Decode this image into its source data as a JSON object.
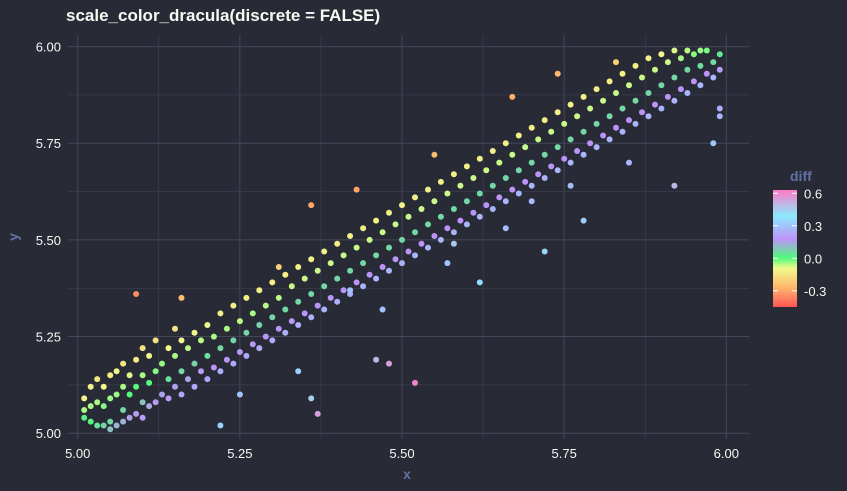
{
  "chart_data": {
    "type": "scatter",
    "title": "scale_color_dracula(discrete = FALSE)",
    "xlabel": "x",
    "ylabel": "y",
    "xlim": [
      4.985,
      6.035
    ],
    "ylim": [
      4.985,
      6.03
    ],
    "x_ticks": [
      "5.00",
      "5.25",
      "5.50",
      "5.75",
      "6.00"
    ],
    "x_tick_values": [
      5.0,
      5.25,
      5.5,
      5.75,
      6.0
    ],
    "y_ticks": [
      "5.00",
      "5.25",
      "5.50",
      "5.75",
      "6.00"
    ],
    "y_tick_values": [
      5.0,
      5.25,
      5.5,
      5.75,
      6.0
    ],
    "grid": true,
    "legend": {
      "title": "diff",
      "placement": "right",
      "labels": [
        "0.6",
        "0.3",
        "0.0",
        "-0.3"
      ],
      "label_values": [
        0.6,
        0.3,
        0.0,
        -0.3
      ],
      "range": [
        -0.45,
        0.63
      ]
    },
    "colors": {
      "background": "#282a36",
      "grid": "#44475a",
      "axis_title": "#6272a4",
      "gradient": [
        "#ff5555",
        "#ffb86c",
        "#f1fa8c",
        "#50fa7b",
        "#bd93f9",
        "#8be9fd",
        "#ff79c6"
      ]
    },
    "points": [
      [
        5.01,
        5.04,
        0.02
      ],
      [
        5.01,
        5.06,
        -0.05
      ],
      [
        5.01,
        5.09,
        -0.1
      ],
      [
        5.02,
        5.03,
        0.01
      ],
      [
        5.02,
        5.07,
        -0.05
      ],
      [
        5.02,
        5.12,
        -0.12
      ],
      [
        5.03,
        5.02,
        0.04
      ],
      [
        5.03,
        5.08,
        -0.05
      ],
      [
        5.03,
        5.14,
        -0.14
      ],
      [
        5.04,
        5.02,
        0.07
      ],
      [
        5.04,
        5.07,
        -0.03
      ],
      [
        5.04,
        5.12,
        -0.1
      ],
      [
        5.05,
        5.01,
        0.1
      ],
      [
        5.05,
        5.03,
        0.06
      ],
      [
        5.05,
        5.09,
        -0.04
      ],
      [
        5.05,
        5.15,
        -0.13
      ],
      [
        5.06,
        5.02,
        0.12
      ],
      [
        5.06,
        5.1,
        -0.04
      ],
      [
        5.06,
        5.16,
        -0.12
      ],
      [
        5.07,
        5.03,
        0.13
      ],
      [
        5.07,
        5.06,
        0.06
      ],
      [
        5.07,
        5.12,
        -0.05
      ],
      [
        5.07,
        5.18,
        -0.14
      ],
      [
        5.08,
        5.04,
        0.15
      ],
      [
        5.08,
        5.1,
        0.0
      ],
      [
        5.08,
        5.15,
        -0.08
      ],
      [
        5.09,
        5.05,
        0.16
      ],
      [
        5.09,
        5.12,
        0.0
      ],
      [
        5.09,
        5.19,
        -0.13
      ],
      [
        5.1,
        5.04,
        0.2
      ],
      [
        5.1,
        5.08,
        0.1
      ],
      [
        5.1,
        5.15,
        -0.05
      ],
      [
        5.1,
        5.22,
        -0.15
      ],
      [
        5.11,
        5.07,
        0.14
      ],
      [
        5.11,
        5.13,
        0.0
      ],
      [
        5.11,
        5.2,
        -0.1
      ],
      [
        5.12,
        5.08,
        0.16
      ],
      [
        5.12,
        5.16,
        -0.03
      ],
      [
        5.12,
        5.24,
        -0.15
      ],
      [
        5.13,
        5.1,
        0.15
      ],
      [
        5.13,
        5.18,
        -0.04
      ],
      [
        5.14,
        5.09,
        0.2
      ],
      [
        5.14,
        5.14,
        0.05
      ],
      [
        5.14,
        5.22,
        -0.1
      ],
      [
        5.15,
        5.12,
        0.16
      ],
      [
        5.15,
        5.2,
        -0.05
      ],
      [
        5.15,
        5.27,
        -0.15
      ],
      [
        5.16,
        5.1,
        0.22
      ],
      [
        5.16,
        5.16,
        0.06
      ],
      [
        5.16,
        5.24,
        -0.1
      ],
      [
        5.17,
        5.14,
        0.15
      ],
      [
        5.17,
        5.22,
        -0.06
      ],
      [
        5.18,
        5.12,
        0.23
      ],
      [
        5.18,
        5.18,
        0.07
      ],
      [
        5.18,
        5.26,
        -0.1
      ],
      [
        5.19,
        5.16,
        0.16
      ],
      [
        5.19,
        5.24,
        -0.06
      ],
      [
        5.2,
        5.14,
        0.22
      ],
      [
        5.2,
        5.2,
        0.05
      ],
      [
        5.2,
        5.28,
        -0.1
      ],
      [
        5.21,
        5.17,
        0.18
      ],
      [
        5.21,
        5.25,
        -0.05
      ],
      [
        5.22,
        5.16,
        0.25
      ],
      [
        5.22,
        5.22,
        0.06
      ],
      [
        5.22,
        5.31,
        -0.12
      ],
      [
        5.23,
        5.19,
        0.17
      ],
      [
        5.23,
        5.27,
        -0.05
      ],
      [
        5.24,
        5.18,
        0.23
      ],
      [
        5.24,
        5.24,
        0.06
      ],
      [
        5.24,
        5.33,
        -0.12
      ],
      [
        5.25,
        5.21,
        0.17
      ],
      [
        5.25,
        5.29,
        -0.06
      ],
      [
        5.26,
        5.2,
        0.24
      ],
      [
        5.26,
        5.26,
        0.06
      ],
      [
        5.26,
        5.35,
        -0.13
      ],
      [
        5.27,
        5.23,
        0.17
      ],
      [
        5.27,
        5.31,
        -0.05
      ],
      [
        5.28,
        5.22,
        0.24
      ],
      [
        5.28,
        5.28,
        0.07
      ],
      [
        5.28,
        5.37,
        -0.12
      ],
      [
        5.29,
        5.25,
        0.17
      ],
      [
        5.29,
        5.33,
        -0.06
      ],
      [
        5.3,
        5.24,
        0.24
      ],
      [
        5.3,
        5.3,
        0.07
      ],
      [
        5.3,
        5.39,
        -0.12
      ],
      [
        5.31,
        5.27,
        0.17
      ],
      [
        5.31,
        5.35,
        -0.06
      ],
      [
        5.32,
        5.26,
        0.25
      ],
      [
        5.32,
        5.32,
        0.06
      ],
      [
        5.32,
        5.41,
        -0.12
      ],
      [
        5.33,
        5.29,
        0.17
      ],
      [
        5.33,
        5.38,
        -0.07
      ],
      [
        5.34,
        5.28,
        0.25
      ],
      [
        5.34,
        5.34,
        0.06
      ],
      [
        5.34,
        5.43,
        -0.12
      ],
      [
        5.35,
        5.31,
        0.18
      ],
      [
        5.35,
        5.4,
        -0.07
      ],
      [
        5.36,
        5.3,
        0.25
      ],
      [
        5.36,
        5.36,
        0.06
      ],
      [
        5.36,
        5.45,
        -0.12
      ],
      [
        5.37,
        5.33,
        0.17
      ],
      [
        5.37,
        5.42,
        -0.07
      ],
      [
        5.38,
        5.32,
        0.25
      ],
      [
        5.38,
        5.38,
        0.06
      ],
      [
        5.38,
        5.47,
        -0.12
      ],
      [
        5.39,
        5.35,
        0.17
      ],
      [
        5.39,
        5.44,
        -0.07
      ],
      [
        5.4,
        5.34,
        0.25
      ],
      [
        5.4,
        5.4,
        0.06
      ],
      [
        5.4,
        5.49,
        -0.13
      ],
      [
        5.41,
        5.37,
        0.18
      ],
      [
        5.41,
        5.46,
        -0.07
      ],
      [
        5.42,
        5.36,
        0.26
      ],
      [
        5.42,
        5.42,
        0.06
      ],
      [
        5.42,
        5.51,
        -0.12
      ],
      [
        5.43,
        5.39,
        0.18
      ],
      [
        5.43,
        5.48,
        -0.07
      ],
      [
        5.44,
        5.38,
        0.26
      ],
      [
        5.44,
        5.44,
        0.06
      ],
      [
        5.44,
        5.53,
        -0.12
      ],
      [
        5.45,
        5.41,
        0.18
      ],
      [
        5.45,
        5.5,
        -0.07
      ],
      [
        5.46,
        5.4,
        0.26
      ],
      [
        5.46,
        5.46,
        0.06
      ],
      [
        5.46,
        5.55,
        -0.12
      ],
      [
        5.47,
        5.43,
        0.18
      ],
      [
        5.47,
        5.52,
        -0.07
      ],
      [
        5.48,
        5.42,
        0.26
      ],
      [
        5.48,
        5.48,
        0.06
      ],
      [
        5.48,
        5.57,
        -0.12
      ],
      [
        5.49,
        5.45,
        0.18
      ],
      [
        5.49,
        5.54,
        -0.07
      ],
      [
        5.5,
        5.44,
        0.26
      ],
      [
        5.5,
        5.5,
        0.06
      ],
      [
        5.5,
        5.59,
        -0.12
      ],
      [
        5.51,
        5.47,
        0.18
      ],
      [
        5.51,
        5.56,
        -0.07
      ],
      [
        5.52,
        5.46,
        0.26
      ],
      [
        5.52,
        5.52,
        0.06
      ],
      [
        5.52,
        5.61,
        -0.12
      ],
      [
        5.53,
        5.49,
        0.18
      ],
      [
        5.53,
        5.58,
        -0.07
      ],
      [
        5.54,
        5.48,
        0.26
      ],
      [
        5.54,
        5.54,
        0.06
      ],
      [
        5.54,
        5.63,
        -0.12
      ],
      [
        5.55,
        5.51,
        0.18
      ],
      [
        5.55,
        5.6,
        -0.07
      ],
      [
        5.56,
        5.5,
        0.26
      ],
      [
        5.56,
        5.56,
        0.06
      ],
      [
        5.56,
        5.65,
        -0.12
      ],
      [
        5.57,
        5.53,
        0.18
      ],
      [
        5.57,
        5.62,
        -0.07
      ],
      [
        5.58,
        5.52,
        0.26
      ],
      [
        5.58,
        5.58,
        0.06
      ],
      [
        5.58,
        5.67,
        -0.12
      ],
      [
        5.59,
        5.55,
        0.18
      ],
      [
        5.59,
        5.64,
        -0.07
      ],
      [
        5.6,
        5.54,
        0.26
      ],
      [
        5.6,
        5.6,
        0.06
      ],
      [
        5.6,
        5.69,
        -0.12
      ],
      [
        5.61,
        5.57,
        0.18
      ],
      [
        5.61,
        5.66,
        -0.07
      ],
      [
        5.62,
        5.56,
        0.26
      ],
      [
        5.62,
        5.62,
        0.06
      ],
      [
        5.62,
        5.71,
        -0.12
      ],
      [
        5.63,
        5.59,
        0.18
      ],
      [
        5.63,
        5.68,
        -0.07
      ],
      [
        5.64,
        5.58,
        0.26
      ],
      [
        5.64,
        5.64,
        0.06
      ],
      [
        5.64,
        5.73,
        -0.12
      ],
      [
        5.65,
        5.61,
        0.18
      ],
      [
        5.65,
        5.7,
        -0.07
      ],
      [
        5.66,
        5.6,
        0.26
      ],
      [
        5.66,
        5.66,
        0.06
      ],
      [
        5.66,
        5.75,
        -0.12
      ],
      [
        5.67,
        5.63,
        0.18
      ],
      [
        5.67,
        5.72,
        -0.07
      ],
      [
        5.68,
        5.62,
        0.26
      ],
      [
        5.68,
        5.68,
        0.06
      ],
      [
        5.68,
        5.77,
        -0.12
      ],
      [
        5.69,
        5.65,
        0.18
      ],
      [
        5.69,
        5.74,
        -0.07
      ],
      [
        5.7,
        5.64,
        0.26
      ],
      [
        5.7,
        5.7,
        0.06
      ],
      [
        5.7,
        5.79,
        -0.12
      ],
      [
        5.71,
        5.67,
        0.18
      ],
      [
        5.71,
        5.76,
        -0.07
      ],
      [
        5.72,
        5.66,
        0.26
      ],
      [
        5.72,
        5.72,
        0.06
      ],
      [
        5.72,
        5.81,
        -0.12
      ],
      [
        5.73,
        5.69,
        0.18
      ],
      [
        5.73,
        5.78,
        -0.07
      ],
      [
        5.74,
        5.68,
        0.26
      ],
      [
        5.74,
        5.74,
        0.06
      ],
      [
        5.74,
        5.83,
        -0.12
      ],
      [
        5.75,
        5.71,
        0.18
      ],
      [
        5.75,
        5.8,
        -0.07
      ],
      [
        5.76,
        5.7,
        0.26
      ],
      [
        5.76,
        5.76,
        0.06
      ],
      [
        5.76,
        5.85,
        -0.12
      ],
      [
        5.77,
        5.73,
        0.18
      ],
      [
        5.77,
        5.82,
        -0.07
      ],
      [
        5.78,
        5.72,
        0.26
      ],
      [
        5.78,
        5.78,
        0.06
      ],
      [
        5.78,
        5.87,
        -0.12
      ],
      [
        5.79,
        5.75,
        0.18
      ],
      [
        5.79,
        5.84,
        -0.07
      ],
      [
        5.8,
        5.74,
        0.26
      ],
      [
        5.8,
        5.8,
        0.06
      ],
      [
        5.8,
        5.89,
        -0.12
      ],
      [
        5.81,
        5.77,
        0.18
      ],
      [
        5.81,
        5.86,
        -0.07
      ],
      [
        5.82,
        5.76,
        0.26
      ],
      [
        5.82,
        5.82,
        0.06
      ],
      [
        5.82,
        5.91,
        -0.12
      ],
      [
        5.83,
        5.79,
        0.18
      ],
      [
        5.83,
        5.88,
        -0.07
      ],
      [
        5.84,
        5.78,
        0.26
      ],
      [
        5.84,
        5.84,
        0.06
      ],
      [
        5.84,
        5.93,
        -0.12
      ],
      [
        5.85,
        5.81,
        0.18
      ],
      [
        5.85,
        5.9,
        -0.07
      ],
      [
        5.86,
        5.8,
        0.26
      ],
      [
        5.86,
        5.86,
        0.06
      ],
      [
        5.86,
        5.95,
        -0.12
      ],
      [
        5.87,
        5.83,
        0.18
      ],
      [
        5.87,
        5.92,
        -0.07
      ],
      [
        5.88,
        5.82,
        0.26
      ],
      [
        5.88,
        5.88,
        0.06
      ],
      [
        5.88,
        5.97,
        -0.12
      ],
      [
        5.89,
        5.85,
        0.18
      ],
      [
        5.89,
        5.94,
        -0.07
      ],
      [
        5.9,
        5.84,
        0.26
      ],
      [
        5.9,
        5.9,
        0.06
      ],
      [
        5.9,
        5.98,
        -0.1
      ],
      [
        5.91,
        5.87,
        0.18
      ],
      [
        5.91,
        5.96,
        -0.07
      ],
      [
        5.92,
        5.86,
        0.26
      ],
      [
        5.92,
        5.92,
        0.06
      ],
      [
        5.92,
        5.99,
        -0.08
      ],
      [
        5.93,
        5.89,
        0.18
      ],
      [
        5.93,
        5.97,
        -0.05
      ],
      [
        5.94,
        5.88,
        0.26
      ],
      [
        5.94,
        5.94,
        0.06
      ],
      [
        5.94,
        5.99,
        -0.06
      ],
      [
        5.95,
        5.91,
        0.18
      ],
      [
        5.95,
        5.98,
        -0.03
      ],
      [
        5.96,
        5.9,
        0.26
      ],
      [
        5.96,
        5.95,
        0.05
      ],
      [
        5.96,
        5.99,
        -0.04
      ],
      [
        5.97,
        5.93,
        0.18
      ],
      [
        5.97,
        5.99,
        -0.02
      ],
      [
        5.98,
        5.92,
        0.26
      ],
      [
        5.98,
        5.96,
        0.06
      ],
      [
        5.99,
        5.94,
        0.2
      ],
      [
        5.99,
        5.98,
        0.03
      ],
      [
        5.09,
        5.36,
        -0.35
      ],
      [
        5.16,
        5.35,
        -0.25
      ],
      [
        5.31,
        5.43,
        -0.2
      ],
      [
        5.36,
        5.59,
        -0.3
      ],
      [
        5.43,
        5.63,
        -0.3
      ],
      [
        5.55,
        5.72,
        -0.26
      ],
      [
        5.67,
        5.87,
        -0.28
      ],
      [
        5.74,
        5.93,
        -0.27
      ],
      [
        5.83,
        5.96,
        -0.2
      ],
      [
        5.25,
        5.1,
        0.3
      ],
      [
        5.22,
        5.02,
        0.33
      ],
      [
        5.34,
        5.16,
        0.33
      ],
      [
        5.37,
        5.05,
        0.55
      ],
      [
        5.36,
        5.09,
        0.45
      ],
      [
        5.46,
        5.19,
        0.5
      ],
      [
        5.48,
        5.18,
        0.55
      ],
      [
        5.52,
        5.13,
        0.6
      ],
      [
        5.58,
        5.49,
        0.46
      ],
      [
        5.62,
        5.39,
        0.36
      ],
      [
        5.72,
        5.47,
        0.34
      ],
      [
        5.78,
        5.55,
        0.32
      ],
      [
        5.92,
        5.64,
        0.5
      ],
      [
        5.98,
        5.75,
        0.3
      ],
      [
        5.99,
        5.82,
        0.26
      ],
      [
        5.99,
        5.84,
        0.25
      ],
      [
        5.42,
        5.37,
        0.3
      ],
      [
        5.47,
        5.32,
        0.3
      ],
      [
        5.57,
        5.44,
        0.3
      ],
      [
        5.66,
        5.53,
        0.28
      ],
      [
        5.7,
        5.6,
        0.28
      ],
      [
        5.76,
        5.64,
        0.28
      ],
      [
        5.85,
        5.7,
        0.27
      ]
    ]
  }
}
